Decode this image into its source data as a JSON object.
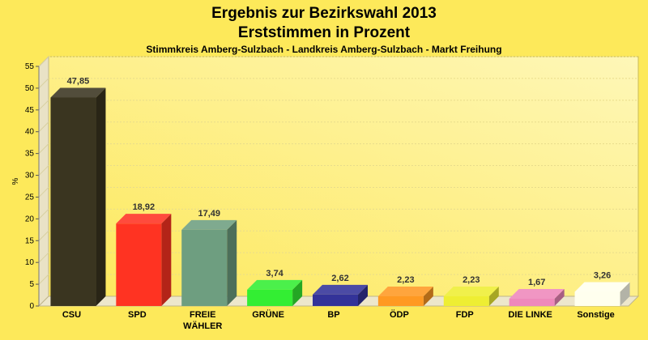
{
  "chart_data": {
    "type": "bar",
    "title": "Ergebnis zur Bezirkswahl 2013",
    "title_line2": "Erststimmen in Prozent",
    "subtitle": "Stimmkreis Amberg-Sulzbach - Landkreis Amberg-Sulzbach - Markt Freihung",
    "ylabel": "%",
    "xlabel": "",
    "ylim": [
      0,
      55
    ],
    "yticks": [
      0,
      5,
      10,
      15,
      20,
      25,
      30,
      35,
      40,
      45,
      50,
      55
    ],
    "grid": true,
    "categories": [
      "CSU",
      "SPD",
      "FREIE WÄHLER",
      "GRÜNE",
      "BP",
      "ÖDP",
      "FDP",
      "DIE LINKE",
      "Sonstige"
    ],
    "values": [
      47.85,
      18.92,
      17.49,
      3.74,
      2.62,
      2.23,
      2.23,
      1.67,
      3.26
    ],
    "value_labels": [
      "47,85",
      "18,92",
      "17,49",
      "3,74",
      "2,62",
      "2,23",
      "2,23",
      "1,67",
      "3,26"
    ],
    "colors": [
      "#3a3520",
      "#ff3322",
      "#6e9e80",
      "#33ee33",
      "#333399",
      "#ff9922",
      "#eeee33",
      "#ee88bb",
      "#ffffee"
    ],
    "background": "#fde95a"
  }
}
